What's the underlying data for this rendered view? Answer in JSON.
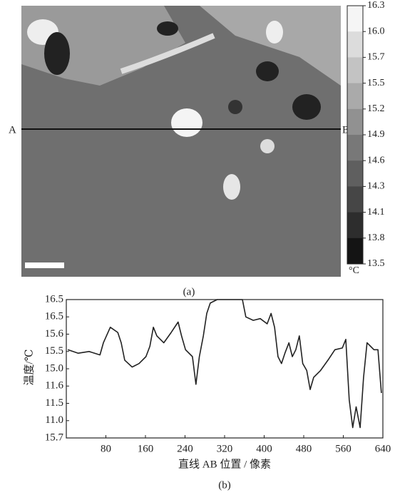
{
  "figure_a": {
    "label": "(a)",
    "point_a": "A",
    "point_b": "B",
    "colorbar": {
      "ticks": [
        16.3,
        {
          "value": 16,
          "label": "16.0"
        },
        15.7,
        15.5,
        15.2,
        14.9,
        14.6,
        14.3,
        14.1,
        13.8,
        13.5
      ],
      "unit": "°C"
    }
  },
  "chart_data": {
    "type": "line",
    "label": "(b)",
    "xlabel": "直线 AB 位置 / 像素",
    "ylabel": "温度/℃",
    "xlim": [
      0,
      640
    ],
    "xticks": [
      80,
      160,
      240,
      320,
      400,
      480,
      560,
      640
    ],
    "ylim": [
      0,
      8
    ],
    "yticks": [
      {
        "value": 8,
        "label": "16.5"
      },
      {
        "value": 7,
        "label": "16.5"
      },
      {
        "value": 6,
        "label": "15.6"
      },
      {
        "value": 5,
        "label": "15.5"
      },
      {
        "value": 4,
        "label": "15.0"
      },
      {
        "value": 3,
        "label": "11.6"
      },
      {
        "value": 2,
        "label": "11.5"
      },
      {
        "value": 1,
        "label": "11.0"
      },
      {
        "value": 0,
        "label": "15.7"
      }
    ],
    "color": "#222",
    "x": [
      3,
      24,
      46,
      68,
      75,
      89,
      104,
      111,
      118,
      133,
      147,
      161,
      169,
      176,
      183,
      197,
      212,
      226,
      233,
      241,
      255,
      262,
      269,
      277,
      284,
      291,
      305,
      327,
      356,
      363,
      378,
      392,
      406,
      414,
      421,
      428,
      435,
      442,
      450,
      457,
      464,
      471,
      478,
      486,
      493,
      500,
      514,
      529,
      543,
      558,
      565,
      572,
      579,
      586,
      594,
      601,
      608,
      615,
      622,
      630,
      637
    ],
    "values": [
      5.1,
      4.9,
      5.0,
      4.8,
      5.5,
      6.4,
      6.1,
      5.5,
      4.5,
      4.1,
      4.3,
      4.7,
      5.3,
      6.4,
      5.9,
      5.5,
      6.1,
      6.7,
      5.9,
      5.1,
      4.7,
      3.1,
      4.7,
      5.9,
      7.2,
      7.8,
      8.0,
      8.0,
      8.0,
      7.0,
      6.8,
      6.9,
      6.6,
      7.2,
      6.4,
      4.7,
      4.3,
      4.9,
      5.5,
      4.7,
      5.1,
      5.9,
      4.3,
      3.9,
      2.8,
      3.5,
      3.9,
      4.5,
      5.1,
      5.2,
      5.7,
      2.2,
      0.6,
      1.8,
      0.6,
      3.5,
      5.5,
      5.3,
      5.1,
      5.1,
      2.6
    ]
  }
}
